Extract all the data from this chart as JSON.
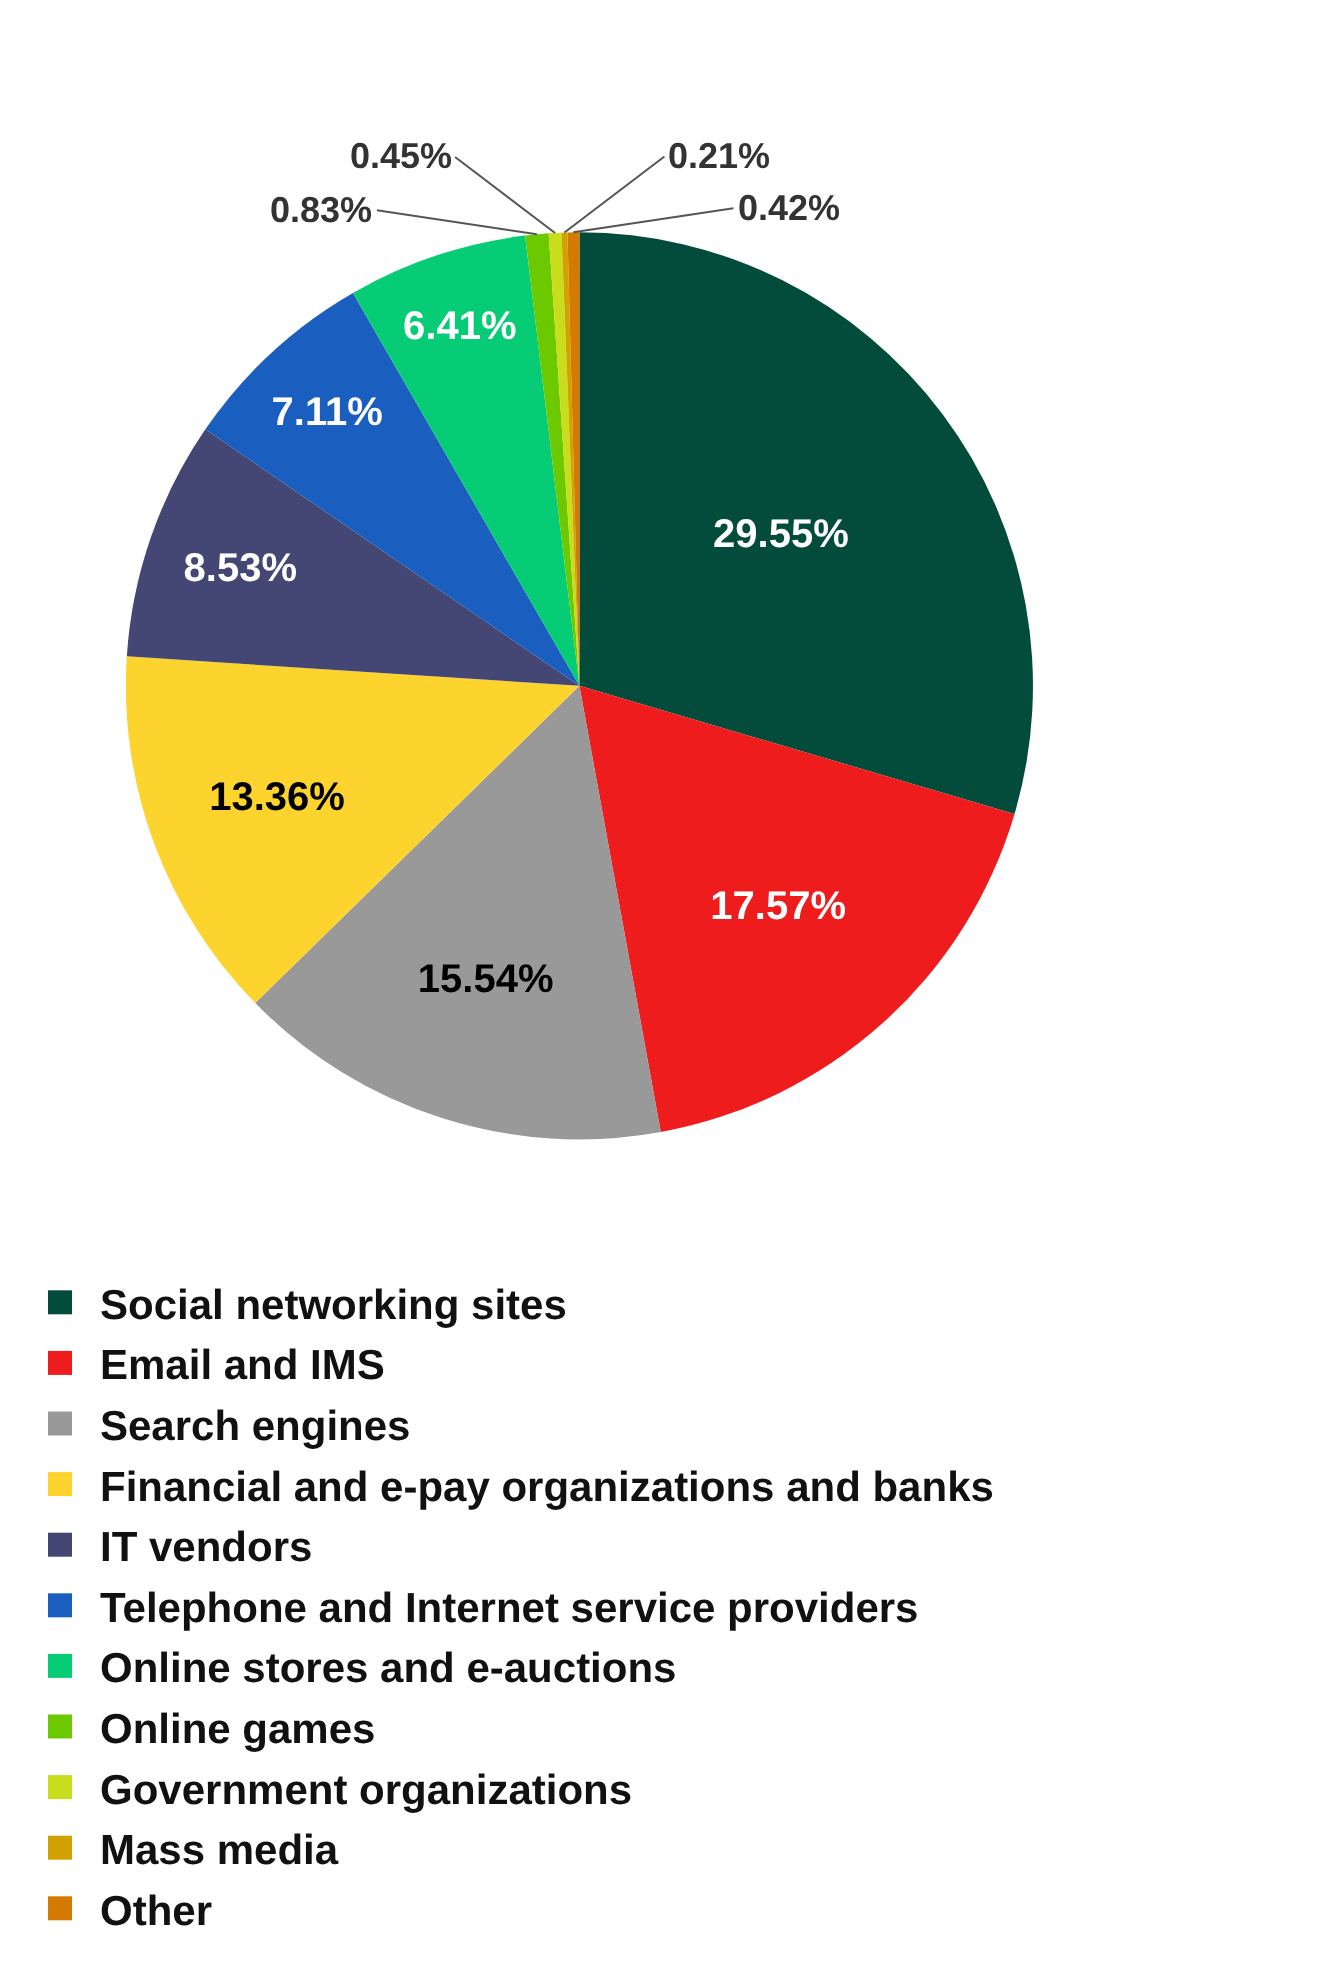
{
  "chart_data": {
    "type": "pie",
    "categories": [
      "Social networking sites",
      "Email and IMS",
      "Search engines",
      "Financial and e-pay organizations and banks",
      "IT vendors",
      "Telephone and Internet service providers",
      "Online stores and e-auctions",
      "Online games",
      "Government organizations",
      "Mass media",
      "Other"
    ],
    "values": [
      29.55,
      17.57,
      15.54,
      13.36,
      8.53,
      7.11,
      6.41,
      0.83,
      0.45,
      0.21,
      0.42
    ],
    "colors": [
      "#034c3c",
      "#ee1c1c",
      "#999999",
      "#fdd32d",
      "#444674",
      "#1a5fbf",
      "#06cc75",
      "#6cc900",
      "#c8dd1b",
      "#d2a300",
      "#d47a00"
    ],
    "value_labels": [
      "29.55%",
      "17.57%",
      "15.54%",
      "13.36%",
      "8.53%",
      "7.11%",
      "6.41%",
      "0.83%",
      "0.45%",
      "0.21%",
      "0.42%"
    ],
    "legend": "bottom"
  }
}
